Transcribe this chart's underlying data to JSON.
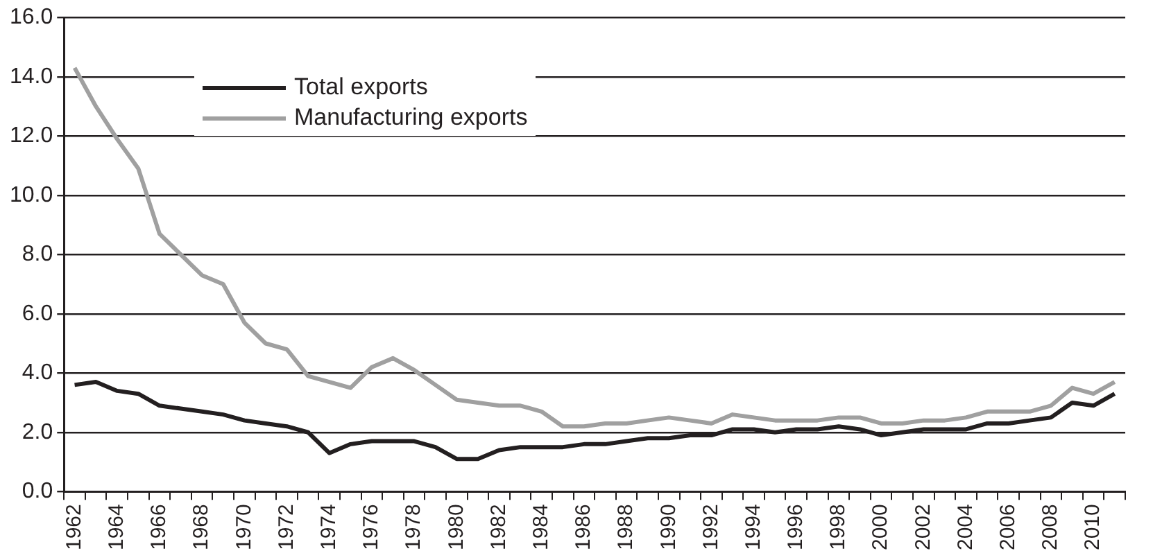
{
  "chart_data": {
    "type": "line",
    "categories": [
      "1962",
      null,
      "1964",
      null,
      "1966",
      null,
      "1968",
      null,
      "1970",
      null,
      "1972",
      null,
      "1974",
      null,
      "1976",
      null,
      "1978",
      null,
      "1980",
      null,
      "1982",
      null,
      "1984",
      null,
      "1986",
      null,
      "1988",
      null,
      "1990",
      null,
      "1992",
      null,
      "1994",
      null,
      "1996",
      null,
      "1998",
      null,
      "2000",
      null,
      "2002",
      null,
      "2004",
      null,
      "2006",
      null,
      "2008",
      null,
      "2010",
      null
    ],
    "series": [
      {
        "name": "Total exports",
        "color": "#231f20",
        "values": [
          3.6,
          3.7,
          3.4,
          3.3,
          2.9,
          2.8,
          2.7,
          2.6,
          2.4,
          2.3,
          2.2,
          2.0,
          1.3,
          1.6,
          1.7,
          1.7,
          1.7,
          1.5,
          1.1,
          1.1,
          1.4,
          1.5,
          1.5,
          1.5,
          1.6,
          1.6,
          1.7,
          1.8,
          1.8,
          1.9,
          1.9,
          2.1,
          2.1,
          2.0,
          2.1,
          2.1,
          2.2,
          2.1,
          1.9,
          2.0,
          2.1,
          2.1,
          2.1,
          2.3,
          2.3,
          2.4,
          2.5,
          3.0,
          2.9,
          3.3
        ]
      },
      {
        "name": "Manufacturing exports",
        "color": "#a0a0a0",
        "values": [
          14.3,
          13.0,
          11.9,
          10.9,
          8.7,
          8.0,
          7.3,
          7.0,
          5.7,
          5.0,
          4.8,
          3.9,
          3.7,
          3.5,
          4.2,
          4.5,
          4.1,
          3.6,
          3.1,
          3.0,
          2.9,
          2.9,
          2.7,
          2.2,
          2.2,
          2.3,
          2.3,
          2.4,
          2.5,
          2.4,
          2.3,
          2.6,
          2.5,
          2.4,
          2.4,
          2.4,
          2.5,
          2.5,
          2.3,
          2.3,
          2.4,
          2.4,
          2.5,
          2.7,
          2.7,
          2.7,
          2.9,
          3.5,
          3.3,
          3.7
        ]
      }
    ],
    "ylim": [
      0,
      16
    ],
    "yticks": [
      {
        "value": 0,
        "label": "0.0"
      },
      {
        "value": 2,
        "label": "2.0"
      },
      {
        "value": 4,
        "label": "4.0"
      },
      {
        "value": 6,
        "label": "6.0"
      },
      {
        "value": 8,
        "label": "8.0"
      },
      {
        "value": 10,
        "label": "10.0"
      },
      {
        "value": 12,
        "label": "12.0"
      },
      {
        "value": 14,
        "label": "14.0"
      },
      {
        "value": 16,
        "label": "16.0"
      }
    ],
    "grid": "y",
    "legend": "top left",
    "marker": "none",
    "line_style": "solid"
  }
}
